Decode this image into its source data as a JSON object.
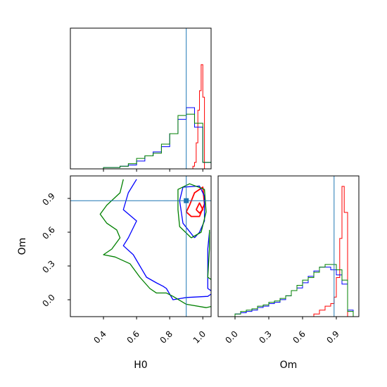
{
  "colors": {
    "red": "#ff0000",
    "blue": "#0000ff",
    "green": "#008000",
    "truth": "#1f77b4"
  },
  "chart_data": {
    "type": "corner",
    "parameters": [
      "H0",
      "Om"
    ],
    "truth": {
      "H0": 0.9,
      "Om": 0.88
    },
    "panels": [
      {
        "name": "H0-marginal",
        "type": "histogram-step",
        "xlim": [
          0.2,
          1.05
        ],
        "series": [
          {
            "color": "red",
            "x": [
              0.94,
              0.95,
              0.96,
              0.97,
              0.98,
              0.99,
              1.0,
              1.01
            ],
            "values": [
              0.02,
              0.05,
              0.2,
              0.45,
              0.6,
              0.8,
              0.55,
              0.05
            ]
          },
          {
            "color": "blue",
            "x": [
              0.2,
              0.3,
              0.4,
              0.5,
              0.55,
              0.6,
              0.65,
              0.7,
              0.75,
              0.8,
              0.85,
              0.9,
              0.95,
              1.0,
              1.05
            ],
            "values": [
              0.0,
              0.0,
              0.01,
              0.02,
              0.03,
              0.06,
              0.1,
              0.13,
              0.17,
              0.27,
              0.38,
              0.47,
              0.32,
              0.05,
              0.0
            ]
          },
          {
            "color": "green",
            "x": [
              0.2,
              0.3,
              0.4,
              0.5,
              0.55,
              0.6,
              0.65,
              0.7,
              0.75,
              0.8,
              0.85,
              0.9,
              0.95,
              1.0,
              1.05
            ],
            "values": [
              0.0,
              0.0,
              0.01,
              0.02,
              0.04,
              0.08,
              0.1,
              0.12,
              0.19,
              0.27,
              0.41,
              0.42,
              0.35,
              0.05,
              0.0
            ]
          }
        ]
      },
      {
        "name": "Om-vs-H0-joint",
        "type": "contour",
        "xlim": [
          0.2,
          1.05
        ],
        "ylim": [
          -0.15,
          1.1
        ],
        "xlabel": "H0",
        "ylabel": "Om",
        "xticks": [
          0.4,
          0.6,
          0.8,
          1.0
        ],
        "xtick_labels": [
          "0.4",
          "0.6",
          "0.8",
          "1.0"
        ],
        "yticks": [
          0.0,
          0.3,
          0.6,
          0.9
        ],
        "ytick_labels": [
          "0.0",
          "0.3",
          "0.6",
          "0.9"
        ],
        "series": [
          {
            "color": "red",
            "contours": [
              [
                [
                  0.9,
                  0.78
                ],
                [
                  0.92,
                  0.84
                ],
                [
                  0.95,
                  0.95
                ],
                [
                  1.0,
                  1.0
                ],
                [
                  1.01,
                  0.85
                ],
                [
                  0.98,
                  0.74
                ],
                [
                  0.93,
                  0.74
                ],
                [
                  0.9,
                  0.78
                ]
              ],
              [
                [
                  0.96,
                  0.8
                ],
                [
                  0.98,
                  0.86
                ],
                [
                  1.0,
                  0.8
                ],
                [
                  0.98,
                  0.77
                ],
                [
                  0.96,
                  0.8
                ]
              ]
            ]
          },
          {
            "color": "blue",
            "contours": [
              [
                [
                  0.95,
                  0.55
                ],
                [
                  0.88,
                  0.68
                ],
                [
                  0.86,
                  0.88
                ],
                [
                  0.88,
                  1.0
                ],
                [
                  0.98,
                  1.01
                ],
                [
                  1.01,
                  0.92
                ],
                [
                  1.01,
                  0.7
                ],
                [
                  0.98,
                  0.6
                ],
                [
                  0.95,
                  0.55
                ]
              ],
              [
                [
                  0.6,
                  1.07
                ],
                [
                  0.55,
                  0.95
                ],
                [
                  0.52,
                  0.8
                ],
                [
                  0.56,
                  0.75
                ],
                [
                  0.6,
                  0.7
                ],
                [
                  0.55,
                  0.55
                ],
                [
                  0.52,
                  0.48
                ],
                [
                  0.58,
                  0.4
                ],
                [
                  0.62,
                  0.3
                ],
                [
                  0.66,
                  0.2
                ],
                [
                  0.72,
                  0.15
                ],
                [
                  0.76,
                  0.12
                ],
                [
                  0.78,
                  0.1
                ],
                [
                  0.82,
                  0.0
                ],
                [
                  0.9,
                  0.02
                ],
                [
                  1.03,
                  0.03
                ],
                [
                  1.05,
                  0.05
                ]
              ],
              [
                [
                  1.04,
                  0.6
                ],
                [
                  1.03,
                  0.45
                ],
                [
                  1.03,
                  0.1
                ],
                [
                  1.05,
                  0.08
                ]
              ]
            ]
          },
          {
            "color": "green",
            "contours": [
              [
                [
                  0.93,
                  0.55
                ],
                [
                  0.86,
                  0.65
                ],
                [
                  0.85,
                  0.8
                ],
                [
                  0.85,
                  0.98
                ],
                [
                  0.92,
                  1.03
                ],
                [
                  1.01,
                  0.98
                ],
                [
                  1.02,
                  0.78
                ],
                [
                  0.99,
                  0.6
                ],
                [
                  0.93,
                  0.55
                ]
              ],
              [
                [
                  0.52,
                  1.07
                ],
                [
                  0.5,
                  0.95
                ],
                [
                  0.42,
                  0.84
                ],
                [
                  0.38,
                  0.76
                ],
                [
                  0.42,
                  0.68
                ],
                [
                  0.48,
                  0.62
                ],
                [
                  0.5,
                  0.55
                ],
                [
                  0.45,
                  0.45
                ],
                [
                  0.4,
                  0.4
                ],
                [
                  0.47,
                  0.38
                ],
                [
                  0.56,
                  0.32
                ],
                [
                  0.62,
                  0.2
                ],
                [
                  0.68,
                  0.1
                ],
                [
                  0.72,
                  0.06
                ],
                [
                  0.78,
                  0.06
                ],
                [
                  0.82,
                  0.03
                ],
                [
                  0.9,
                  -0.04
                ],
                [
                  1.02,
                  -0.07
                ],
                [
                  1.05,
                  -0.06
                ]
              ],
              [
                [
                  1.04,
                  0.62
                ],
                [
                  1.04,
                  0.45
                ],
                [
                  1.03,
                  0.2
                ],
                [
                  1.05,
                  0.18
                ]
              ]
            ]
          }
        ]
      },
      {
        "name": "Om-marginal",
        "type": "histogram-step",
        "xlim": [
          -0.15,
          1.1
        ],
        "xlabel": "Om",
        "xticks": [
          0.0,
          0.3,
          0.6,
          0.9
        ],
        "xtick_labels": [
          "0.0",
          "0.3",
          "0.6",
          "0.9"
        ],
        "series": [
          {
            "color": "red",
            "x": [
              0.6,
              0.7,
              0.75,
              0.8,
              0.85,
              0.88,
              0.9,
              0.93,
              0.95,
              0.97,
              1.0
            ],
            "values": [
              0.0,
              0.02,
              0.05,
              0.08,
              0.1,
              0.15,
              0.3,
              0.6,
              1.0,
              0.8,
              0.1
            ]
          },
          {
            "color": "blue",
            "x": [
              -0.15,
              0.0,
              0.05,
              0.1,
              0.15,
              0.2,
              0.25,
              0.3,
              0.35,
              0.4,
              0.45,
              0.5,
              0.55,
              0.6,
              0.65,
              0.7,
              0.75,
              0.8,
              0.85,
              0.9,
              0.95,
              1.0,
              1.05
            ],
            "values": [
              0.0,
              0.02,
              0.03,
              0.04,
              0.05,
              0.07,
              0.08,
              0.1,
              0.11,
              0.13,
              0.16,
              0.2,
              0.22,
              0.26,
              0.31,
              0.35,
              0.38,
              0.38,
              0.36,
              0.32,
              0.25,
              0.05,
              0.0
            ]
          },
          {
            "color": "green",
            "x": [
              -0.15,
              0.0,
              0.05,
              0.1,
              0.15,
              0.2,
              0.25,
              0.3,
              0.35,
              0.4,
              0.45,
              0.5,
              0.55,
              0.6,
              0.65,
              0.7,
              0.75,
              0.8,
              0.85,
              0.9,
              0.95,
              1.0,
              1.05
            ],
            "values": [
              0.0,
              0.02,
              0.04,
              0.05,
              0.06,
              0.08,
              0.09,
              0.11,
              0.12,
              0.14,
              0.16,
              0.2,
              0.24,
              0.28,
              0.3,
              0.34,
              0.38,
              0.4,
              0.4,
              0.36,
              0.28,
              0.04,
              0.0
            ]
          }
        ]
      }
    ]
  }
}
